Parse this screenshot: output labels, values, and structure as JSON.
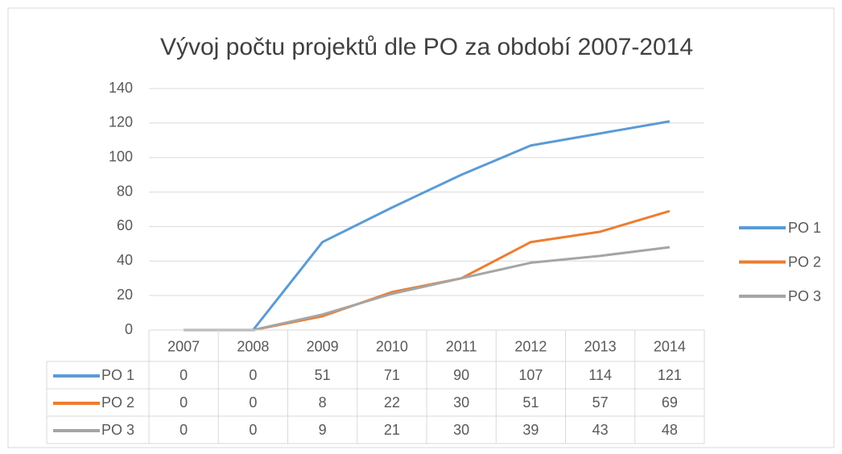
{
  "chart_data": {
    "type": "line",
    "title": "Vývoj počtu projektů dle PO za období 2007-2014",
    "categories": [
      "2007",
      "2008",
      "2009",
      "2010",
      "2011",
      "2012",
      "2013",
      "2014"
    ],
    "series": [
      {
        "name": "PO 1",
        "color": "#5b9bd5",
        "values": [
          0,
          0,
          51,
          71,
          90,
          107,
          114,
          121
        ]
      },
      {
        "name": "PO 2",
        "color": "#ed7d31",
        "values": [
          0,
          0,
          8,
          22,
          30,
          51,
          57,
          69
        ]
      },
      {
        "name": "PO 3",
        "color": "#a5a5a5",
        "values": [
          0,
          0,
          9,
          21,
          30,
          39,
          43,
          48
        ]
      }
    ],
    "ylim": [
      0,
      140
    ],
    "yticks": [
      0,
      20,
      40,
      60,
      80,
      100,
      120,
      140
    ],
    "grid": true,
    "legend": "right",
    "data_table": true
  }
}
